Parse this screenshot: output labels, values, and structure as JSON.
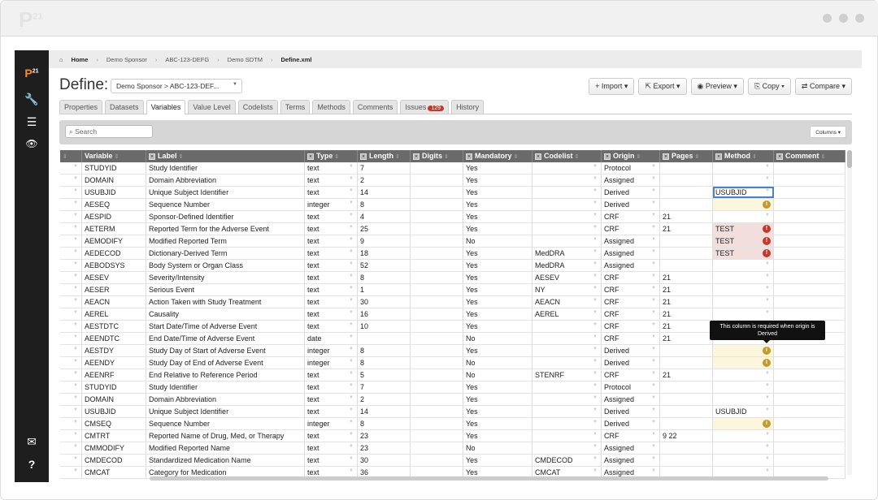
{
  "window": {
    "ghost_logo": "P",
    "ghost_logo_sup": "21"
  },
  "sidebar": {
    "logo": "P",
    "logo_sup": "21",
    "items": [
      {
        "icon": "wrench-icon",
        "glyph": "🔧"
      },
      {
        "icon": "list-icon",
        "glyph": "☰"
      },
      {
        "icon": "eye-icon",
        "glyph": "👁"
      }
    ],
    "bottom": [
      {
        "icon": "mail-icon",
        "glyph": "✉"
      },
      {
        "icon": "help-icon",
        "glyph": "?"
      }
    ]
  },
  "breadcrumb": [
    "Home",
    "Demo Sponsor",
    "ABC-123-DEFG",
    "Demo SDTM",
    "Define.xml"
  ],
  "header": {
    "title": "Define:",
    "selector": "Demo Sponsor > ABC-123-DEF...",
    "buttons": [
      "+ Import ▾",
      "⇱ Export ▾",
      "◉ Preview ▾",
      "⎘ Copy ▾",
      "⇄ Compare ▾"
    ]
  },
  "tabs": [
    {
      "label": "Properties"
    },
    {
      "label": "Datasets"
    },
    {
      "label": "Variables",
      "active": true
    },
    {
      "label": "Value Level"
    },
    {
      "label": "Codelists"
    },
    {
      "label": "Terms"
    },
    {
      "label": "Methods"
    },
    {
      "label": "Comments"
    },
    {
      "label": "Issues",
      "badge": "129"
    },
    {
      "label": "History"
    }
  ],
  "toolbar": {
    "search_placeholder": "Search",
    "columns_label": "Columns ▾"
  },
  "columns": [
    "Variable",
    "Label",
    "Type",
    "Length",
    "Digits",
    "Mandatory",
    "Codelist",
    "Origin",
    "Pages",
    "Method",
    "Comment"
  ],
  "rows": [
    [
      "STUDYID",
      "Study Identifier",
      "text",
      "7",
      "",
      "Yes",
      "",
      "Protocol",
      "",
      "",
      ""
    ],
    [
      "DOMAIN",
      "Domain Abbreviation",
      "text",
      "2",
      "",
      "Yes",
      "",
      "Assigned",
      "",
      "",
      ""
    ],
    [
      "USUBJID",
      "Unique Subject Identifier",
      "text",
      "14",
      "",
      "Yes",
      "",
      "Derived",
      "",
      "USUBJID",
      "selected"
    ],
    [
      "AESEQ",
      "Sequence Number",
      "integer",
      "8",
      "",
      "Yes",
      "",
      "Derived",
      "",
      "",
      "warning"
    ],
    [
      "AESPID",
      "Sponsor-Defined Identifier",
      "text",
      "4",
      "",
      "Yes",
      "",
      "CRF",
      "21",
      "",
      ""
    ],
    [
      "AETERM",
      "Reported Term for the Adverse Event",
      "text",
      "25",
      "",
      "Yes",
      "",
      "CRF",
      "21",
      "TEST",
      "error"
    ],
    [
      "AEMODIFY",
      "Modified Reported Term",
      "text",
      "9",
      "",
      "No",
      "",
      "Assigned",
      "",
      "TEST",
      "error"
    ],
    [
      "AEDECOD",
      "Dictionary-Derived Term",
      "text",
      "18",
      "",
      "Yes",
      "MedDRA",
      "Assigned",
      "",
      "TEST",
      "error"
    ],
    [
      "AEBODSYS",
      "Body System or Organ Class",
      "text",
      "52",
      "",
      "Yes",
      "MedDRA",
      "Assigned",
      "",
      "",
      ""
    ],
    [
      "AESEV",
      "Severity/Intensity",
      "text",
      "8",
      "",
      "Yes",
      "AESEV",
      "CRF",
      "21",
      "",
      ""
    ],
    [
      "AESER",
      "Serious Event",
      "text",
      "1",
      "",
      "Yes",
      "NY",
      "CRF",
      "21",
      "",
      ""
    ],
    [
      "AEACN",
      "Action Taken with Study Treatment",
      "text",
      "30",
      "",
      "Yes",
      "AEACN",
      "CRF",
      "21",
      "",
      ""
    ],
    [
      "AEREL",
      "Causality",
      "text",
      "16",
      "",
      "Yes",
      "AEREL",
      "CRF",
      "21",
      "",
      ""
    ],
    [
      "AESTDTC",
      "Start Date/Time of Adverse Event",
      "text",
      "10",
      "",
      "Yes",
      "",
      "CRF",
      "21",
      "",
      ""
    ],
    [
      "AEENDTC",
      "End Date/Time of Adverse Event",
      "date",
      "",
      "",
      "No",
      "",
      "CRF",
      "21",
      "",
      ""
    ],
    [
      "AESTDY",
      "Study Day of Start of Adverse Event",
      "integer",
      "8",
      "",
      "Yes",
      "",
      "Derived",
      "",
      "",
      "warning"
    ],
    [
      "AEENDY",
      "Study Day of End of Adverse Event",
      "integer",
      "8",
      "",
      "No",
      "",
      "Derived",
      "",
      "",
      "warning"
    ],
    [
      "AEENRF",
      "End Relative to Reference Period",
      "text",
      "5",
      "",
      "No",
      "STENRF",
      "CRF",
      "21",
      "",
      ""
    ],
    [
      "STUDYID",
      "Study Identifier",
      "text",
      "7",
      "",
      "Yes",
      "",
      "Protocol",
      "",
      "",
      ""
    ],
    [
      "DOMAIN",
      "Domain Abbreviation",
      "text",
      "2",
      "",
      "Yes",
      "",
      "Assigned",
      "",
      "",
      ""
    ],
    [
      "USUBJID",
      "Unique Subject Identifier",
      "text",
      "14",
      "",
      "Yes",
      "",
      "Derived",
      "",
      "USUBJID",
      ""
    ],
    [
      "CMSEQ",
      "Sequence Number",
      "integer",
      "8",
      "",
      "Yes",
      "",
      "Derived",
      "",
      "",
      "warning"
    ],
    [
      "CMTRT",
      "Reported Name of Drug, Med, or Therapy",
      "text",
      "23",
      "",
      "Yes",
      "",
      "CRF",
      "9 22",
      "",
      ""
    ],
    [
      "CMMODIFY",
      "Modified Reported Name",
      "text",
      "23",
      "",
      "No",
      "",
      "Assigned",
      "",
      "",
      ""
    ],
    [
      "CMDECOD",
      "Standardized Medication Name",
      "text",
      "30",
      "",
      "Yes",
      "CMDECOD",
      "Assigned",
      "",
      "",
      ""
    ],
    [
      "CMCAT",
      "Category for Medication",
      "text",
      "36",
      "",
      "Yes",
      "CMCAT",
      "Assigned",
      "",
      "",
      ""
    ]
  ],
  "tooltip": "This column is required when origin is Derived",
  "colors": {
    "sidebar": "#1e1e1e",
    "accent": "#f28c28",
    "header": "#6a6a6a",
    "error": "#c0392b",
    "warning": "#c29a2f",
    "selected": "#4a7fd4"
  }
}
